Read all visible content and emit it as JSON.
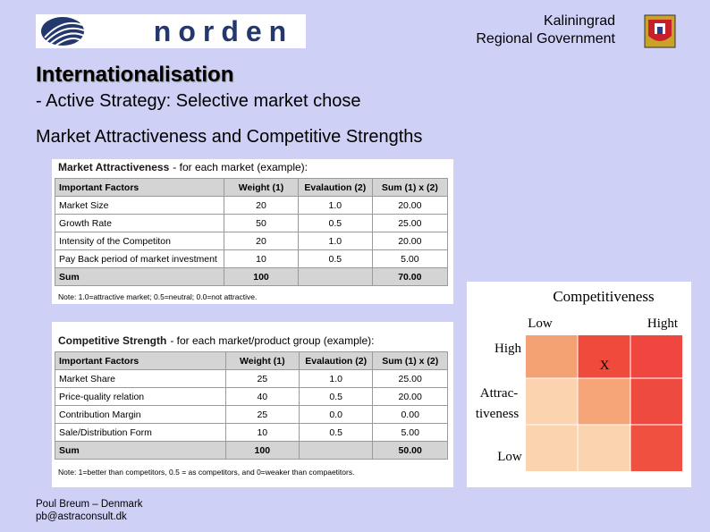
{
  "header": {
    "logo_text": "norden",
    "org_line1": "Kaliningrad",
    "org_line2": "Regional Government"
  },
  "title": "Internationalisation",
  "subtitle": "- Active Strategy: Selective market chose",
  "heading": "Market Attractiveness and Competitive Strengths",
  "table1": {
    "caption_bold": "Market Attractiveness",
    "caption_rest": "- for each market (example):",
    "columns": [
      "Important Factors",
      "Weight (1)",
      "Evalaution (2)",
      "Sum (1) x (2)"
    ],
    "rows": [
      [
        "Market Size",
        "20",
        "1.0",
        "20.00"
      ],
      [
        "Growth Rate",
        "50",
        "0.5",
        "25.00"
      ],
      [
        "Intensity of the Competiton",
        "20",
        "1.0",
        "20.00"
      ],
      [
        "Pay Back period of market investment",
        "10",
        "0.5",
        "5.00"
      ]
    ],
    "sum_row": {
      "label": "Sum",
      "weight": "100",
      "total": "70.00"
    },
    "note": "Note: 1.0=attractive market; 0.5=neutral; 0.0=not attractive."
  },
  "table2": {
    "caption_bold": "Competitive Strength",
    "caption_rest": "- for each market/product group (example):",
    "columns": [
      "Important Factors",
      "Weight (1)",
      "Evalaution (2)",
      "Sum (1) x (2)"
    ],
    "rows": [
      [
        "Market Share",
        "25",
        "1.0",
        "25.00"
      ],
      [
        "Price-quality relation",
        "40",
        "0.5",
        "20.00"
      ],
      [
        "Contribution Margin",
        "25",
        "0.0",
        "0.00"
      ],
      [
        "Sale/Distribution Form",
        "10",
        "0.5",
        "5.00"
      ]
    ],
    "sum_row": {
      "label": "Sum",
      "weight": "100",
      "total": "50.00"
    },
    "note": "Note: 1=better than competitors, 0.5 = as competitors, and 0=weaker than compaetitors."
  },
  "matrix": {
    "title": "Competitiveness",
    "col_low": "Low",
    "col_high": "Hight",
    "row_high": "High",
    "row_label_1": "Attrac-",
    "row_label_2": "tiveness",
    "row_low": "Low",
    "marker": "X"
  },
  "footer": {
    "line1": "Poul Breum – Denmark",
    "line2": "pb@astraconsult.dk"
  }
}
